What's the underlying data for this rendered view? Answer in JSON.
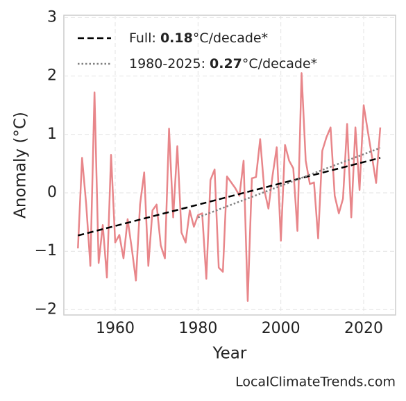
{
  "chart_data": {
    "type": "line",
    "xlabel": "Year",
    "ylabel": "Anomaly (°C)",
    "footer": "LocalClimateTrends.com",
    "x": [
      1951,
      1952,
      1953,
      1954,
      1955,
      1956,
      1957,
      1958,
      1959,
      1960,
      1961,
      1962,
      1963,
      1964,
      1965,
      1966,
      1967,
      1968,
      1969,
      1970,
      1971,
      1972,
      1973,
      1974,
      1975,
      1976,
      1977,
      1978,
      1979,
      1980,
      1981,
      1982,
      1983,
      1984,
      1985,
      1986,
      1987,
      1988,
      1989,
      1990,
      1991,
      1992,
      1993,
      1994,
      1995,
      1996,
      1997,
      1998,
      1999,
      2000,
      2001,
      2002,
      2003,
      2004,
      2005,
      2006,
      2007,
      2008,
      2009,
      2010,
      2011,
      2012,
      2013,
      2014,
      2015,
      2016,
      2017,
      2018,
      2019,
      2020,
      2021,
      2022,
      2023,
      2024
    ],
    "series": [
      {
        "color": "#e8868a",
        "values": [
          -0.95,
          0.6,
          -0.2,
          -1.25,
          1.72,
          -1.2,
          -0.55,
          -1.45,
          0.65,
          -0.85,
          -0.72,
          -1.12,
          -0.45,
          -0.95,
          -1.5,
          -0.2,
          0.35,
          -1.25,
          -0.3,
          -0.2,
          -0.9,
          -1.12,
          1.1,
          -0.42,
          0.8,
          -0.68,
          -0.85,
          -0.3,
          -0.58,
          -0.38,
          -0.35,
          -1.47,
          0.22,
          0.4,
          -1.28,
          -1.35,
          0.28,
          0.18,
          0.08,
          -0.05,
          0.55,
          -1.85,
          0.25,
          0.27,
          0.92,
          0.05,
          -0.27,
          0.3,
          0.78,
          -0.82,
          0.82,
          0.55,
          0.42,
          -0.65,
          2.05,
          0.55,
          0.15,
          0.18,
          -0.78,
          0.72,
          0.95,
          1.12,
          -0.05,
          -0.35,
          -0.1,
          1.18,
          -0.42,
          1.12,
          0.05,
          1.5,
          1.05,
          0.62,
          0.17,
          1.12
        ]
      }
    ],
    "trends": [
      {
        "label": "Full:",
        "slope": 0.18,
        "unit": "°C/decade*",
        "color": "#000000",
        "dash": "dashed",
        "x": [
          1951,
          2024
        ],
        "values": [
          -0.73,
          0.6
        ]
      },
      {
        "label": "1980-2025:",
        "slope": 0.27,
        "unit": "°C/decade*",
        "color": "#808080",
        "dash": "dotted",
        "x": [
          1980,
          2024
        ],
        "values": [
          -0.42,
          0.77
        ]
      }
    ],
    "xlim": [
      1947.6,
      2027.7
    ],
    "ylim": [
      -2.09,
      3.04
    ],
    "xticks": [
      1960,
      1980,
      2000,
      2020
    ],
    "yticks": [
      {
        "value": -2,
        "label": "−2"
      },
      {
        "value": -1,
        "label": "−1"
      },
      0,
      1,
      2,
      3
    ],
    "grid": true,
    "legend": "upper left"
  }
}
